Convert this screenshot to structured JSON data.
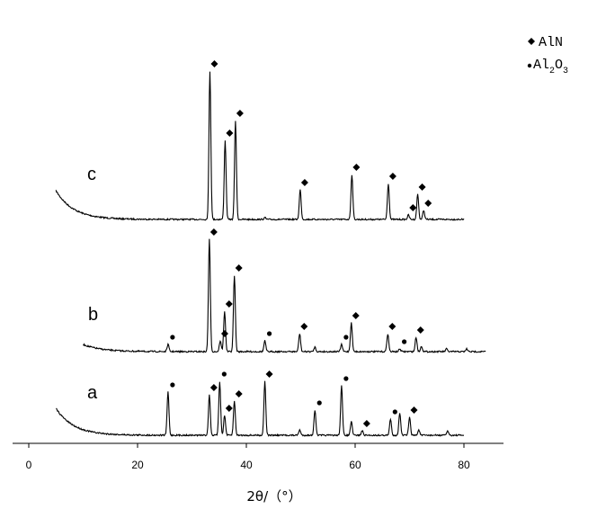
{
  "chart_data": {
    "type": "line",
    "title": "",
    "xlabel": "2θ/（°）",
    "ylabel": "",
    "xlim": [
      -1,
      88
    ],
    "x_ticks": [
      0,
      20,
      40,
      60,
      80
    ],
    "grid": false,
    "legend_position": "top-right",
    "legend": [
      {
        "marker": "diamond",
        "label": "AlN"
      },
      {
        "marker": "dot",
        "label_main": "Al",
        "sub1": "2",
        "mid": "O",
        "sub2": "3"
      }
    ],
    "series": [
      {
        "name": "c",
        "x_range": [
          5,
          80
        ],
        "peaks": [
          {
            "x": 33.3,
            "h": 165,
            "marker": "diamond"
          },
          {
            "x": 36.1,
            "h": 88,
            "marker": "diamond"
          },
          {
            "x": 38.0,
            "h": 110,
            "marker": "diamond"
          },
          {
            "x": 43.4,
            "h": 2,
            "marker": "none"
          },
          {
            "x": 49.9,
            "h": 33,
            "marker": "diamond"
          },
          {
            "x": 59.4,
            "h": 50,
            "marker": "diamond"
          },
          {
            "x": 66.1,
            "h": 40,
            "marker": "diamond"
          },
          {
            "x": 69.8,
            "h": 5,
            "marker": "diamond"
          },
          {
            "x": 71.5,
            "h": 28,
            "marker": "diamond"
          },
          {
            "x": 72.6,
            "h": 10,
            "marker": "diamond"
          }
        ]
      },
      {
        "name": "b",
        "x_range": [
          10,
          84
        ],
        "peaks": [
          {
            "x": 25.6,
            "h": 8,
            "marker": "dot"
          },
          {
            "x": 33.2,
            "h": 125,
            "marker": "diamond"
          },
          {
            "x": 35.2,
            "h": 12,
            "marker": "diamond"
          },
          {
            "x": 36.0,
            "h": 45,
            "marker": "diamond"
          },
          {
            "x": 37.8,
            "h": 85,
            "marker": "diamond"
          },
          {
            "x": 43.4,
            "h": 12,
            "marker": "dot"
          },
          {
            "x": 49.8,
            "h": 20,
            "marker": "diamond"
          },
          {
            "x": 52.6,
            "h": 5,
            "marker": "none"
          },
          {
            "x": 57.5,
            "h": 8,
            "marker": "dot"
          },
          {
            "x": 59.3,
            "h": 32,
            "marker": "diamond"
          },
          {
            "x": 66.0,
            "h": 20,
            "marker": "diamond"
          },
          {
            "x": 68.2,
            "h": 3,
            "marker": "dot"
          },
          {
            "x": 71.2,
            "h": 16,
            "marker": "diamond"
          },
          {
            "x": 72.2,
            "h": 6,
            "marker": "none"
          },
          {
            "x": 76.8,
            "h": 3,
            "marker": "none"
          },
          {
            "x": 80.5,
            "h": 3,
            "marker": "none"
          }
        ]
      },
      {
        "name": "a",
        "x_range": [
          5,
          80
        ],
        "peaks": [
          {
            "x": 25.6,
            "h": 48,
            "marker": "dot"
          },
          {
            "x": 33.2,
            "h": 45,
            "marker": "diamond"
          },
          {
            "x": 35.1,
            "h": 60,
            "marker": "dot"
          },
          {
            "x": 36.0,
            "h": 22,
            "marker": "diamond"
          },
          {
            "x": 37.8,
            "h": 38,
            "marker": "diamond"
          },
          {
            "x": 43.4,
            "h": 60,
            "marker": "diamond"
          },
          {
            "x": 49.8,
            "h": 6,
            "marker": "none"
          },
          {
            "x": 52.6,
            "h": 28,
            "marker": "dot"
          },
          {
            "x": 57.5,
            "h": 55,
            "marker": "dot"
          },
          {
            "x": 59.3,
            "h": 15,
            "marker": "none"
          },
          {
            "x": 61.3,
            "h": 5,
            "marker": "diamond"
          },
          {
            "x": 66.5,
            "h": 18,
            "marker": "dot"
          },
          {
            "x": 68.2,
            "h": 25,
            "marker": "none"
          },
          {
            "x": 70.0,
            "h": 20,
            "marker": "diamond"
          },
          {
            "x": 71.7,
            "h": 6,
            "marker": "none"
          },
          {
            "x": 77.0,
            "h": 5,
            "marker": "none"
          }
        ]
      }
    ]
  }
}
